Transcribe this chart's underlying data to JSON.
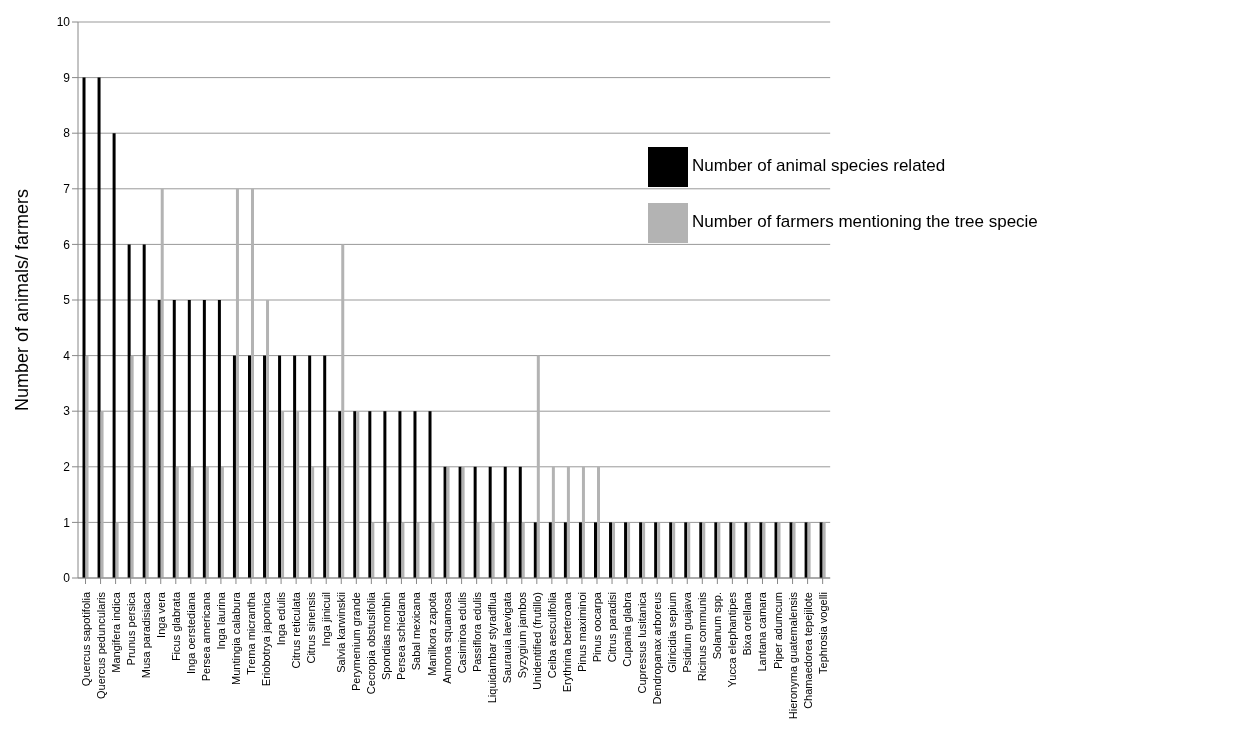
{
  "chart_data": {
    "type": "bar",
    "ylabel": "Number of animals/ farmers",
    "categories": [
      "Quercus sapotifolia",
      "Quercus peduncularis",
      "Mangifera indica",
      "Prunus persica",
      "Musa paradisiaca",
      "Inga vera",
      "Ficus glabrata",
      "Inga oerstediana",
      "Persea americana",
      "Inga laurina",
      "Muntingia calabura",
      "Trema micrantha",
      "Eriobotrya japonica",
      "Inga edulis",
      "Citrus reticulata",
      "Citrus sinensis",
      "Inga jinicuil",
      "Salvia karwinskii",
      "Perymenium grande",
      "Cecropia obstusifolia",
      "Spondias mombin",
      "Persea schiedana",
      "Sabal mexicana",
      "Manilkora zapota",
      "Annona squamosa",
      "Casimiroa edulis",
      "Passiflora edulis",
      "Liquidambar styradflua",
      "Saurauia laevigata",
      "Syzygium jambos",
      "Unidentified (frutillo)",
      "Ceiba aesculifolia",
      "Erythrina berteroana",
      "Pinus maximinoi",
      "Pinus oocarpa",
      "Citrus paradisi",
      "Cupania glabra",
      "Cupressus lusitanica",
      "Dendropanax arboreus",
      "Gliricidia sepium",
      "Psidium guajava",
      "Ricinus communis",
      "Solanum spp.",
      "Yucca elephantipes",
      "Bixa orellana",
      "Lantana camara",
      "Piper adumcum",
      "Hieronyma guatemalensis",
      "Chamaedorea tepejilote",
      "Tephrosia vogelli"
    ],
    "series": [
      {
        "name": "Number of animal species related",
        "color": "#000000",
        "values": [
          9,
          9,
          8,
          6,
          6,
          5,
          5,
          5,
          5,
          5,
          4,
          4,
          4,
          4,
          4,
          4,
          4,
          3,
          3,
          3,
          3,
          3,
          3,
          3,
          2,
          2,
          2,
          2,
          2,
          2,
          1,
          1,
          1,
          1,
          1,
          1,
          1,
          1,
          1,
          1,
          1,
          1,
          1,
          1,
          1,
          1,
          1,
          1,
          1,
          1
        ]
      },
      {
        "name": "Number of farmers mentioning the tree specie",
        "color": "#b3b3b3",
        "values": [
          4,
          3,
          1,
          4,
          4,
          7,
          2,
          2,
          2,
          2,
          7,
          7,
          5,
          3,
          3,
          2,
          2,
          6,
          3,
          1,
          1,
          1,
          1,
          1,
          2,
          2,
          1,
          1,
          1,
          1,
          4,
          2,
          2,
          2,
          2,
          1,
          1,
          1,
          1,
          1,
          1,
          1,
          1,
          1,
          1,
          1,
          1,
          1,
          1,
          1
        ]
      }
    ],
    "ylim": [
      0,
      10
    ],
    "yticks": [
      0,
      1,
      2,
      3,
      4,
      5,
      6,
      7,
      8,
      9,
      10
    ],
    "grid": "y",
    "legend": "top right"
  }
}
